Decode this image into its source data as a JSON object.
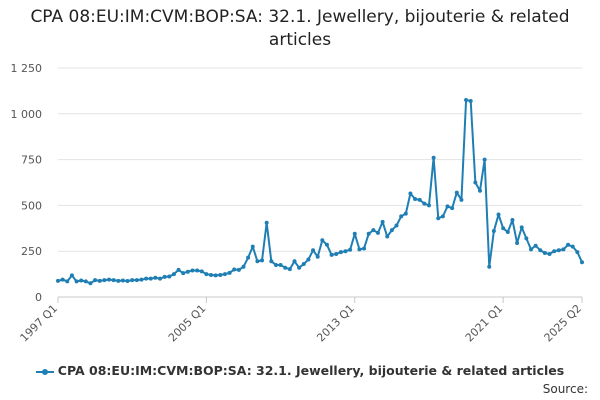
{
  "chart_data": {
    "type": "line",
    "title": "CPA 08:EU:IM:CVM:BOP:SA: 32.1. Jewellery, bijouterie & related articles",
    "xlabel": "",
    "ylabel": "",
    "ylim": [
      0,
      1250
    ],
    "yticks": [
      0,
      250,
      500,
      750,
      1000,
      1250
    ],
    "ytick_labels": [
      "0",
      "250",
      "500",
      "750",
      "1 000",
      "1 250"
    ],
    "xtick_labels": [
      "1997 Q1",
      "2005 Q1",
      "2013 Q1",
      "2021 Q1",
      "2025 Q2"
    ],
    "xtick_index": [
      0,
      32,
      64,
      96,
      113
    ],
    "grid": true,
    "legend_position": "bottom",
    "color": "#1f7fb4",
    "series": [
      {
        "name": "CPA 08:EU:IM:CVM:BOP:SA: 32.1. Jewellery, bijouterie & related articles",
        "values": [
          88,
          95,
          85,
          118,
          85,
          90,
          85,
          75,
          92,
          88,
          92,
          95,
          92,
          88,
          90,
          87,
          92,
          92,
          95,
          100,
          100,
          105,
          100,
          110,
          112,
          125,
          148,
          130,
          138,
          145,
          145,
          140,
          125,
          120,
          118,
          120,
          125,
          132,
          150,
          148,
          165,
          215,
          275,
          195,
          200,
          405,
          195,
          175,
          175,
          160,
          152,
          195,
          160,
          180,
          205,
          255,
          220,
          310,
          285,
          230,
          235,
          245,
          250,
          258,
          345,
          260,
          265,
          345,
          365,
          350,
          410,
          330,
          365,
          390,
          440,
          455,
          565,
          535,
          530,
          510,
          500,
          760,
          430,
          440,
          495,
          485,
          570,
          530,
          1075,
          1070,
          625,
          580,
          750,
          165,
          360,
          450,
          375,
          355,
          420,
          295,
          380,
          320,
          260,
          280,
          255,
          240,
          235,
          250,
          255,
          260,
          285,
          275,
          245,
          190
        ]
      }
    ]
  },
  "source_label": "Source:"
}
